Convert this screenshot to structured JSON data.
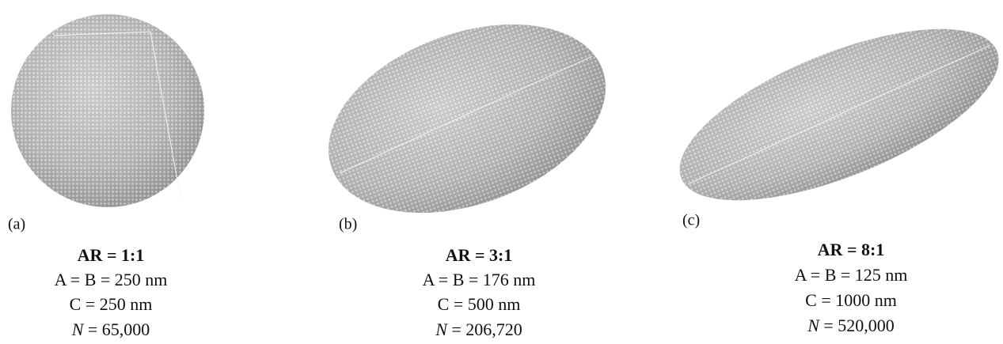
{
  "panels": [
    {
      "label": "(a)",
      "aspect_ratio": "AR = 1:1",
      "ab": "A = B = 250 nm",
      "c": "C = 250 nm",
      "n_symbol": "N",
      "n_value": "= 65,000"
    },
    {
      "label": "(b)",
      "aspect_ratio": "AR = 3:1",
      "ab": "A = B = 176 nm",
      "c": "C = 500 nm",
      "n_symbol": "N",
      "n_value": "= 206,720"
    },
    {
      "label": "(c)",
      "aspect_ratio": "AR = 8:1",
      "ab": "A = B = 125 nm",
      "c": "C = 1000 nm",
      "n_symbol": "N",
      "n_value": "= 520,000"
    }
  ]
}
